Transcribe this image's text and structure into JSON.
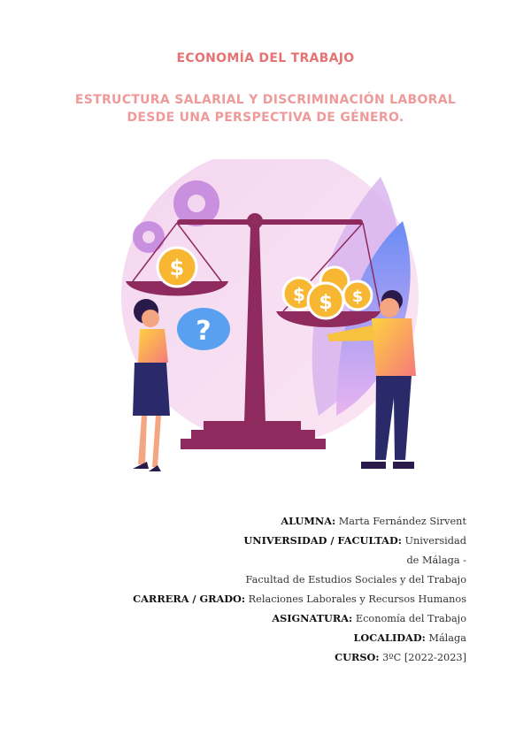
{
  "course_title": "ECONOMÍA DEL TRABAJO",
  "subtitle_line1": "ESTRUCTURA SALARIAL Y DISCRIMINACIÓN LABORAL",
  "subtitle_line2": "DESDE UNA PERSPECTIVA DE GÉNERO.",
  "illustration": {
    "icons": [
      "gear-icon",
      "balance-scale-icon",
      "coin-dollar-icon",
      "question-bubble-icon",
      "woman-figure",
      "man-figure"
    ]
  },
  "colors": {
    "title": "#e57373",
    "subtitle": "#ef9a9a",
    "scale": "#8e2a5e",
    "accent": "#f7b733"
  },
  "info": [
    {
      "label": "ALUMNA:",
      "value": " Marta Fernández Sirvent"
    },
    {
      "label": "UNIVERSIDAD / FACULTAD:",
      "value": " Universidad"
    },
    {
      "label": "",
      "value": "de Málaga -"
    },
    {
      "label": "",
      "value": "Facultad de Estudios Sociales y del Trabajo"
    },
    {
      "label": "CARRERA / GRADO:",
      "value": " Relaciones Laborales y Recursos Humanos"
    },
    {
      "label": "ASIGNATURA:",
      "value": " Economía del Trabajo"
    },
    {
      "label": "LOCALIDAD:",
      "value": " Málaga"
    },
    {
      "label": "CURSO:",
      "value": "  3ºC [2022-2023]"
    }
  ]
}
